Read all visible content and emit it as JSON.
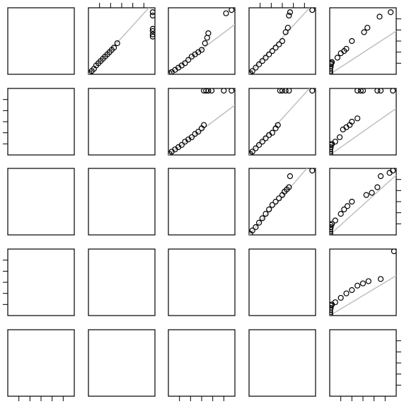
{
  "chart_data": {
    "type": "pairs",
    "point_color": "#000000",
    "line_color": "#c0c0c0",
    "variables": [
      {
        "lim": [
          0,
          6
        ],
        "ticks": [
          1,
          2,
          3,
          4,
          5
        ]
      },
      {
        "lim": [
          0,
          6
        ],
        "ticks": [
          1,
          2,
          3,
          4,
          5
        ]
      },
      {
        "lim": [
          0,
          6
        ],
        "ticks": [
          1,
          2,
          3,
          4,
          5
        ]
      },
      {
        "lim": [
          0,
          6
        ],
        "ticks": [
          1,
          2,
          3,
          4,
          5
        ]
      },
      {
        "lim": [
          0,
          6
        ],
        "ticks": [
          1,
          2,
          3,
          4,
          5
        ]
      }
    ],
    "panels": [
      {
        "x": [
          0.1,
          0.3,
          0.5,
          0.7,
          0.9,
          1.1,
          1.3,
          1.5,
          1.7,
          1.9,
          2.1,
          2.3,
          2.6,
          5.8,
          5.8,
          5.8,
          5.8,
          5.8,
          5.8
        ],
        "y": [
          0.1,
          0.3,
          0.5,
          0.8,
          1.0,
          1.2,
          1.4,
          1.6,
          1.8,
          2.0,
          2.2,
          2.4,
          2.8,
          5.6,
          5.3,
          4.1,
          3.9,
          3.6,
          3.4
        ],
        "slope": 1.1
      },
      {
        "x": [
          0.1,
          0.3,
          0.6,
          0.9,
          1.2,
          1.5,
          1.8,
          2.1,
          2.4,
          2.7,
          3.0,
          3.3,
          3.5,
          3.6,
          5.2,
          5.7
        ],
        "y": [
          0.1,
          0.2,
          0.4,
          0.6,
          0.8,
          1.0,
          1.3,
          1.6,
          1.8,
          2.0,
          2.2,
          2.8,
          3.3,
          3.7,
          5.5,
          5.8
        ],
        "slope": 0.75
      },
      {
        "x": [
          0.1,
          0.3,
          0.6,
          0.9,
          1.2,
          1.5,
          1.8,
          2.1,
          2.4,
          2.7,
          3.0,
          3.3,
          3.5,
          3.6,
          3.7,
          5.7
        ],
        "y": [
          0.1,
          0.3,
          0.6,
          0.9,
          1.2,
          1.5,
          1.8,
          2.1,
          2.4,
          2.7,
          3.0,
          3.8,
          4.2,
          5.3,
          5.6,
          5.8
        ],
        "slope": 1.1
      },
      {
        "x": [
          0.05,
          0.05,
          0.05,
          0.1,
          0.1,
          0.15,
          0.2,
          0.7,
          1.0,
          1.3,
          1.5,
          2.0,
          3.1,
          3.4,
          4.5,
          5.5
        ],
        "y": [
          0.1,
          0.3,
          0.5,
          0.7,
          0.9,
          1.0,
          1.1,
          1.5,
          1.9,
          2.1,
          2.3,
          3.0,
          3.8,
          4.2,
          5.2,
          5.6
        ],
        "slope": 0.65
      },
      {
        "x": [
          0.1,
          0.3,
          0.6,
          0.9,
          1.2,
          1.5,
          1.8,
          2.1,
          2.4,
          2.7,
          3.0,
          3.2,
          3.2,
          3.4,
          3.6,
          3.9,
          5.0,
          5.7
        ],
        "y": [
          0.1,
          0.3,
          0.5,
          0.7,
          0.9,
          1.2,
          1.4,
          1.6,
          1.9,
          2.1,
          2.4,
          2.7,
          5.8,
          5.8,
          5.8,
          5.8,
          5.8,
          5.8
        ],
        "slope": 0.75
      },
      {
        "x": [
          0.1,
          0.3,
          0.6,
          0.9,
          1.2,
          1.5,
          1.8,
          2.1,
          2.4,
          2.6,
          2.8,
          3.0,
          3.3,
          3.6,
          5.7
        ],
        "y": [
          0.1,
          0.3,
          0.6,
          0.9,
          1.2,
          1.5,
          1.8,
          2.0,
          2.4,
          2.7,
          5.8,
          5.8,
          5.8,
          5.8,
          5.8
        ],
        "slope": 1.1
      },
      {
        "x": [
          0.05,
          0.05,
          0.05,
          0.1,
          0.1,
          0.2,
          0.5,
          0.9,
          1.2,
          1.5,
          1.8,
          2.0,
          2.5,
          2.5,
          2.8,
          3.0,
          4.3,
          4.6,
          5.7
        ],
        "y": [
          0.1,
          0.3,
          0.5,
          0.7,
          0.9,
          1.0,
          1.2,
          1.6,
          2.3,
          2.5,
          2.7,
          3.0,
          3.3,
          5.8,
          5.8,
          5.8,
          5.8,
          5.8,
          5.8
        ],
        "slope": 0.7
      },
      {
        "x": [
          0.1,
          0.3,
          0.6,
          0.9,
          1.2,
          1.5,
          1.8,
          2.1,
          2.4,
          2.7,
          3.0,
          3.2,
          3.4,
          3.6,
          3.7,
          5.7
        ],
        "y": [
          0.1,
          0.4,
          0.7,
          1.1,
          1.5,
          1.9,
          2.3,
          2.7,
          3.0,
          3.3,
          3.6,
          3.9,
          4.1,
          4.3,
          5.3,
          5.8
        ],
        "slope": 1.15
      },
      {
        "x": [
          0.05,
          0.05,
          0.05,
          0.1,
          0.1,
          0.2,
          0.5,
          1.0,
          1.3,
          1.6,
          2.0,
          3.3,
          3.8,
          4.3,
          4.6,
          5.4,
          5.7
        ],
        "y": [
          0.1,
          0.3,
          0.5,
          0.7,
          0.9,
          1.0,
          1.3,
          1.9,
          2.3,
          2.6,
          3.0,
          3.6,
          3.8,
          4.3,
          5.3,
          5.6,
          5.8
        ],
        "slope": 0.9
      },
      {
        "x": [
          0.05,
          0.05,
          0.05,
          0.1,
          0.1,
          0.2,
          0.5,
          1.0,
          1.5,
          2.0,
          2.5,
          3.0,
          3.5,
          4.6,
          5.8
        ],
        "y": [
          0.1,
          0.3,
          0.5,
          0.7,
          0.9,
          1.0,
          1.2,
          1.6,
          2.0,
          2.3,
          2.7,
          2.9,
          3.1,
          3.3,
          5.8
        ],
        "slope": 0.6
      }
    ]
  }
}
